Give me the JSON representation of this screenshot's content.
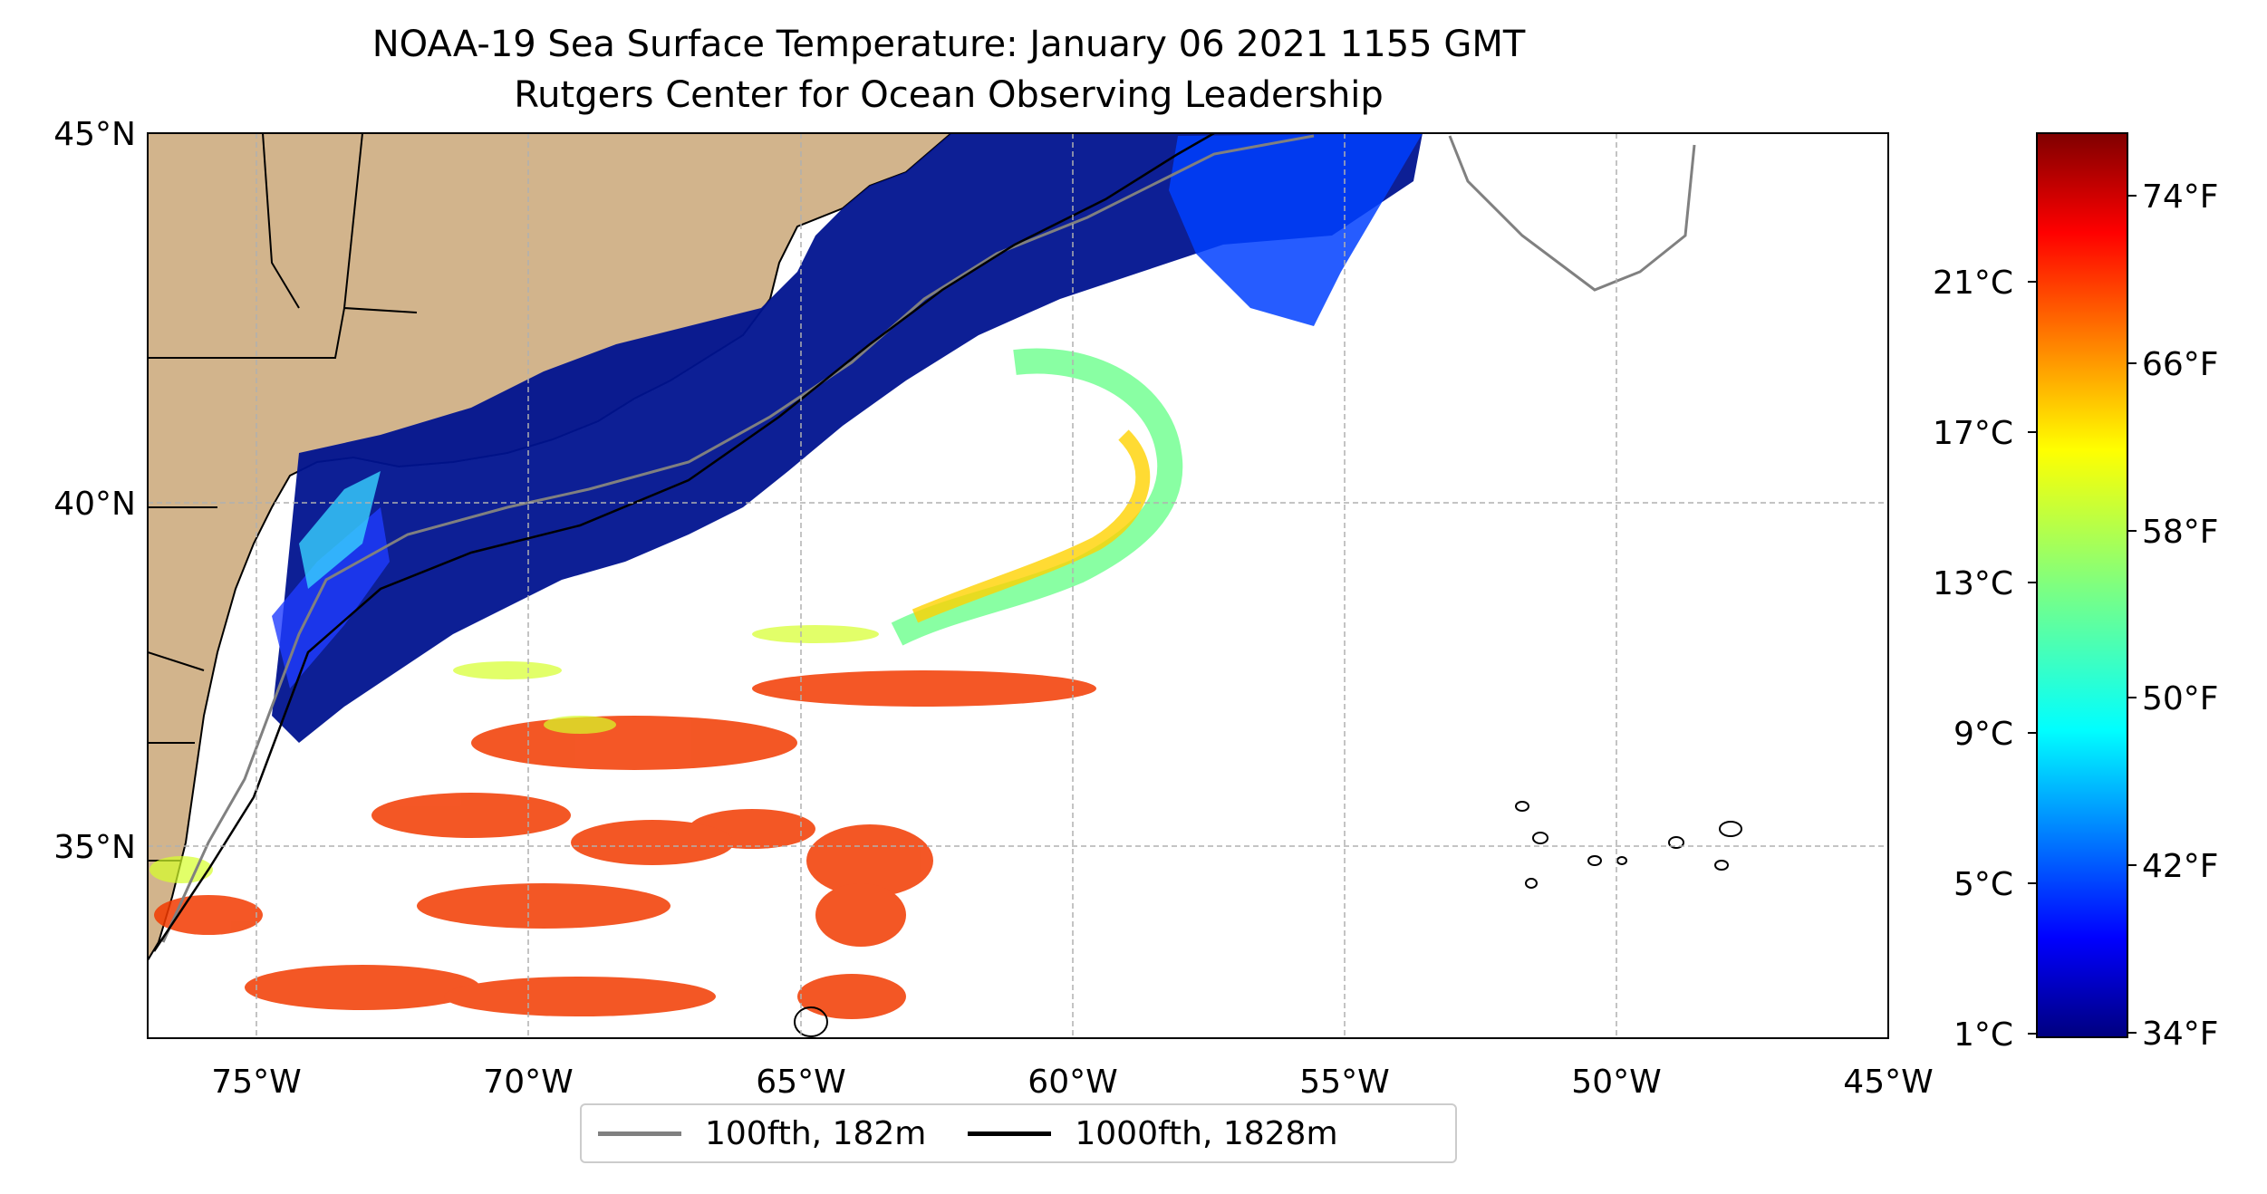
{
  "title_line1": "NOAA-19 Sea Surface Temperature: January 06 2021 1155 GMT",
  "title_line2": "Rutgers Center for Ocean Observing Leadership",
  "map": {
    "lon_range": [
      -77,
      -45
    ],
    "lat_range": [
      32.4,
      45
    ],
    "lon_ticks": [
      "75°W",
      "70°W",
      "65°W",
      "60°W",
      "55°W",
      "50°W",
      "45°W"
    ],
    "lat_ticks": [
      "45°N",
      "40°N",
      "35°N"
    ],
    "land_color": "#d2b48c",
    "gridlines": "dashed",
    "data_source": "satellite sea surface temperature swath (NOAA-19)"
  },
  "colorbar": {
    "colormap": "jet",
    "celsius_ticks": [
      "21°C",
      "17°C",
      "13°C",
      "9°C",
      "5°C",
      "1°C"
    ],
    "fahrenheit_ticks": [
      "74°F",
      "66°F",
      "58°F",
      "50°F",
      "42°F",
      "34°F"
    ],
    "range_f": [
      33,
      78
    ]
  },
  "legend": {
    "items": [
      {
        "label": "100fth, 182m",
        "color": "#808080"
      },
      {
        "label": "1000fth, 1828m",
        "color": "#000000"
      }
    ]
  }
}
